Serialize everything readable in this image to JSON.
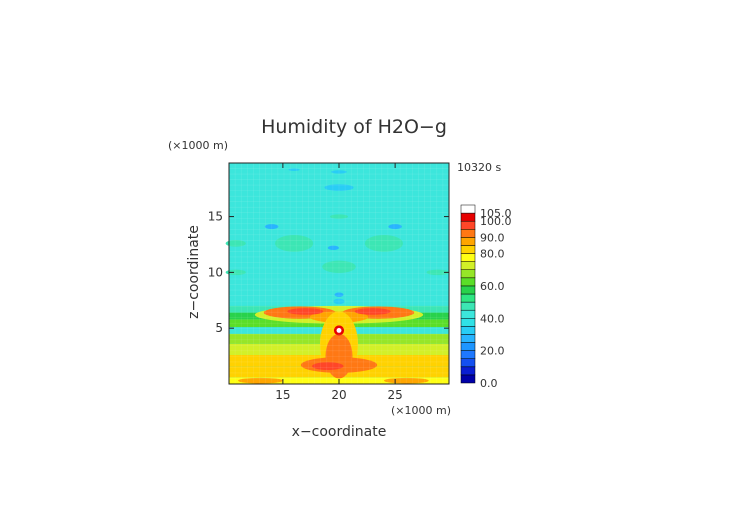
{
  "chart_data": {
    "type": "heatmap",
    "title": "Humidity of H2O−g",
    "xlabel": "x−coordinate",
    "ylabel": "z−coordinate",
    "x_unit": "(×1000 m)",
    "z_unit": "(×1000 m)",
    "time_label": "10320 s",
    "xlim": [
      10.2,
      29.8
    ],
    "ylim": [
      0,
      19.8
    ],
    "x_ticks": [
      15,
      20,
      25
    ],
    "x_tick_labels": [
      "15",
      "20",
      "25"
    ],
    "y_ticks": [
      5,
      10,
      15
    ],
    "y_tick_labels": [
      "5",
      "10",
      "15"
    ],
    "colorbar": {
      "ticks": [
        0.0,
        20.0,
        40.0,
        60.0,
        80.0,
        90.0,
        100.0,
        105.0
      ],
      "tick_labels": [
        "0.0",
        "20.0",
        "40.0",
        "60.0",
        "80.0",
        "90.0",
        "100.0",
        "105.0"
      ],
      "levels": [
        {
          "from": 0,
          "to": 5,
          "color": "#0000a8"
        },
        {
          "from": 5,
          "to": 10,
          "color": "#0a1ed2"
        },
        {
          "from": 10,
          "to": 15,
          "color": "#1450f0"
        },
        {
          "from": 15,
          "to": 20,
          "color": "#1e78ff"
        },
        {
          "from": 20,
          "to": 25,
          "color": "#1e96ff"
        },
        {
          "from": 25,
          "to": 30,
          "color": "#28b4ff"
        },
        {
          "from": 30,
          "to": 35,
          "color": "#28cdf5"
        },
        {
          "from": 35,
          "to": 40,
          "color": "#30e1e6"
        },
        {
          "from": 40,
          "to": 45,
          "color": "#3ce6dc"
        },
        {
          "from": 45,
          "to": 50,
          "color": "#3ce6b4"
        },
        {
          "from": 50,
          "to": 55,
          "color": "#2ee682"
        },
        {
          "from": 55,
          "to": 60,
          "color": "#28d24b"
        },
        {
          "from": 60,
          "to": 65,
          "color": "#5ade28"
        },
        {
          "from": 65,
          "to": 70,
          "color": "#96e628"
        },
        {
          "from": 70,
          "to": 75,
          "color": "#d2f028"
        },
        {
          "from": 75,
          "to": 80,
          "color": "#ffff14"
        },
        {
          "from": 80,
          "to": 85,
          "color": "#ffd200"
        },
        {
          "from": 85,
          "to": 90,
          "color": "#ffa500"
        },
        {
          "from": 90,
          "to": 95,
          "color": "#ff7814"
        },
        {
          "from": 95,
          "to": 100,
          "color": "#ff4628"
        },
        {
          "from": 100,
          "to": 105,
          "color": "#e60000"
        },
        {
          "from": 105,
          "to": 110,
          "color": "#ffffff"
        }
      ]
    },
    "background_value": 42,
    "features": [
      {
        "kind": "band",
        "z_from": 0.0,
        "z_to": 0.6,
        "value": 78
      },
      {
        "kind": "band",
        "z_from": 0.6,
        "z_to": 1.6,
        "value": 84
      },
      {
        "kind": "band",
        "z_from": 1.6,
        "z_to": 2.6,
        "value": 80
      },
      {
        "kind": "band",
        "z_from": 2.6,
        "z_to": 3.6,
        "value": 72
      },
      {
        "kind": "band",
        "z_from": 3.6,
        "z_to": 4.5,
        "value": 68
      },
      {
        "kind": "band",
        "z_from": 4.5,
        "z_to": 5.1,
        "value": 40
      },
      {
        "kind": "band",
        "z_from": 5.1,
        "z_to": 5.8,
        "value": 62
      },
      {
        "kind": "band",
        "z_from": 5.8,
        "z_to": 6.4,
        "value": 55
      },
      {
        "kind": "band",
        "z_from": 6.4,
        "z_to": 7.0,
        "value": 48
      },
      {
        "kind": "blob",
        "x": 20.0,
        "z": 6.2,
        "rx": 7.5,
        "rz": 0.8,
        "value": 74
      },
      {
        "kind": "blob",
        "x": 16.5,
        "z": 6.4,
        "rx": 3.2,
        "rz": 0.55,
        "value": 90
      },
      {
        "kind": "blob",
        "x": 23.5,
        "z": 6.4,
        "rx": 3.2,
        "rz": 0.55,
        "value": 90
      },
      {
        "kind": "blob",
        "x": 20.0,
        "z": 6.0,
        "rx": 2.6,
        "rz": 0.5,
        "value": 88
      },
      {
        "kind": "blob",
        "x": 17.0,
        "z": 6.5,
        "rx": 1.6,
        "rz": 0.3,
        "value": 97
      },
      {
        "kind": "blob",
        "x": 23.0,
        "z": 6.5,
        "rx": 1.6,
        "rz": 0.3,
        "value": 97
      },
      {
        "kind": "blob",
        "x": 20.0,
        "z": 3.5,
        "rx": 1.7,
        "rz": 3.0,
        "value": 84
      },
      {
        "kind": "blob",
        "x": 20.0,
        "z": 2.5,
        "rx": 1.2,
        "rz": 2.0,
        "value": 92
      },
      {
        "kind": "blob",
        "x": 20.0,
        "z": 4.8,
        "rx": 0.45,
        "rz": 0.45,
        "value": 100
      },
      {
        "kind": "blob",
        "x": 20.0,
        "z": 4.8,
        "rx": 0.22,
        "rz": 0.22,
        "value": 106
      },
      {
        "kind": "blob",
        "x": 20.0,
        "z": 1.7,
        "rx": 3.4,
        "rz": 0.7,
        "value": 92
      },
      {
        "kind": "blob",
        "x": 19.0,
        "z": 1.6,
        "rx": 1.4,
        "rz": 0.35,
        "value": 97
      },
      {
        "kind": "blob",
        "x": 13.0,
        "z": 0.3,
        "rx": 2.0,
        "rz": 0.25,
        "value": 86
      },
      {
        "kind": "blob",
        "x": 26.0,
        "z": 0.3,
        "rx": 2.0,
        "rz": 0.25,
        "value": 86
      },
      {
        "kind": "blob",
        "x": 20.0,
        "z": 17.6,
        "rx": 1.3,
        "rz": 0.3,
        "value": 30
      },
      {
        "kind": "blob",
        "x": 14.0,
        "z": 14.1,
        "rx": 0.6,
        "rz": 0.22,
        "value": 28
      },
      {
        "kind": "blob",
        "x": 25.0,
        "z": 14.1,
        "rx": 0.6,
        "rz": 0.22,
        "value": 28
      },
      {
        "kind": "blob",
        "x": 20.0,
        "z": 15.0,
        "rx": 0.8,
        "rz": 0.2,
        "value": 45
      },
      {
        "kind": "blob",
        "x": 16.0,
        "z": 12.6,
        "rx": 1.7,
        "rz": 0.75,
        "value": 47
      },
      {
        "kind": "blob",
        "x": 24.0,
        "z": 12.6,
        "rx": 1.7,
        "rz": 0.75,
        "value": 47
      },
      {
        "kind": "blob",
        "x": 20.0,
        "z": 10.5,
        "rx": 1.5,
        "rz": 0.55,
        "value": 47
      },
      {
        "kind": "blob",
        "x": 10.8,
        "z": 12.6,
        "rx": 0.9,
        "rz": 0.3,
        "value": 45
      },
      {
        "kind": "blob",
        "x": 28.8,
        "z": 10.0,
        "rx": 1.0,
        "rz": 0.25,
        "value": 45
      },
      {
        "kind": "blob",
        "x": 10.8,
        "z": 10.0,
        "rx": 0.9,
        "rz": 0.25,
        "value": 45
      },
      {
        "kind": "blob",
        "x": 20.0,
        "z": 19.0,
        "rx": 0.7,
        "rz": 0.15,
        "value": 30
      },
      {
        "kind": "blob",
        "x": 16.0,
        "z": 19.2,
        "rx": 0.5,
        "rz": 0.12,
        "value": 30
      },
      {
        "kind": "blob",
        "x": 20.0,
        "z": 8.0,
        "rx": 0.4,
        "rz": 0.2,
        "value": 28
      },
      {
        "kind": "blob",
        "x": 20.0,
        "z": 7.4,
        "rx": 0.5,
        "rz": 0.25,
        "value": 30
      },
      {
        "kind": "blob",
        "x": 19.5,
        "z": 12.2,
        "rx": 0.5,
        "rz": 0.2,
        "value": 28
      }
    ]
  }
}
